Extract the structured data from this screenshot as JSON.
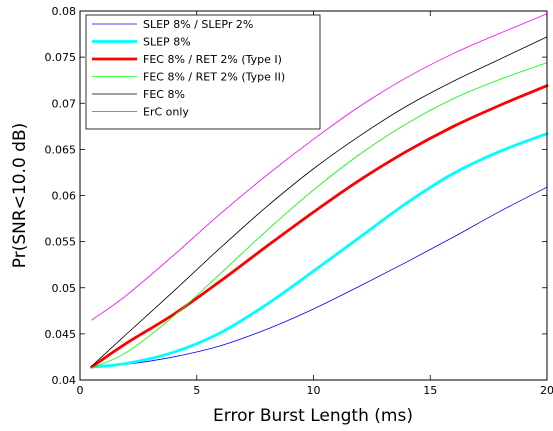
{
  "chart_data": {
    "type": "line",
    "title": "",
    "xlabel": "Error Burst Length (ms)",
    "ylabel": "Pr(SNR<10.0 dB)",
    "xlim": [
      0,
      20
    ],
    "ylim": [
      0.04,
      0.08
    ],
    "xticks": [
      0,
      5,
      10,
      15,
      20
    ],
    "yticks": [
      0.04,
      0.045,
      0.05,
      0.055,
      0.06,
      0.065,
      0.07,
      0.075,
      0.08
    ],
    "xtick_labels": [
      "0",
      "5",
      "10",
      "15",
      "20"
    ],
    "ytick_labels": [
      "0.04",
      "0.045",
      "0.05",
      "0.055",
      "0.06",
      "0.065",
      "0.07",
      "0.075",
      "0.08"
    ],
    "grid": false,
    "legend_position": "top-left",
    "x": [
      0.5,
      2,
      4,
      6,
      8,
      10,
      12,
      14,
      16,
      18,
      20
    ],
    "series": [
      {
        "name": "SLEP 8% / SLEPr 2%",
        "color": "#0000ff",
        "width": 0.8,
        "values": [
          0.0414,
          0.0417,
          0.0425,
          0.0437,
          0.0455,
          0.0477,
          0.0502,
          0.0528,
          0.0555,
          0.0583,
          0.0609
        ]
      },
      {
        "name": "SLEP 8%",
        "color": "#00ffff",
        "width": 2.8,
        "values": [
          0.0414,
          0.0418,
          0.043,
          0.0451,
          0.0482,
          0.0518,
          0.0555,
          0.0592,
          0.0624,
          0.0648,
          0.0667
        ]
      },
      {
        "name": "FEC 8% / RET 2% (Type I)",
        "color": "#ff0000",
        "width": 2.8,
        "values": [
          0.0414,
          0.044,
          0.0471,
          0.0507,
          0.0545,
          0.0582,
          0.0617,
          0.0648,
          0.0675,
          0.0698,
          0.0719
        ]
      },
      {
        "name": "FEC 8% / RET 2% (Type II)",
        "color": "#00ff00",
        "width": 0.8,
        "values": [
          0.0413,
          0.043,
          0.0469,
          0.0515,
          0.0562,
          0.0606,
          0.0645,
          0.0678,
          0.0705,
          0.0726,
          0.0744
        ]
      },
      {
        "name": "FEC 8%",
        "color": "#000000",
        "width": 0.8,
        "values": [
          0.0415,
          0.045,
          0.0496,
          0.0543,
          0.0588,
          0.0629,
          0.0665,
          0.0697,
          0.0724,
          0.0748,
          0.0772
        ]
      },
      {
        "name": "ErC only",
        "color": "#ff00ff",
        "width": 0.8,
        "values": [
          0.0465,
          0.0492,
          0.0535,
          0.058,
          0.0622,
          0.0661,
          0.0697,
          0.0728,
          0.0754,
          0.0776,
          0.0797
        ]
      }
    ]
  }
}
